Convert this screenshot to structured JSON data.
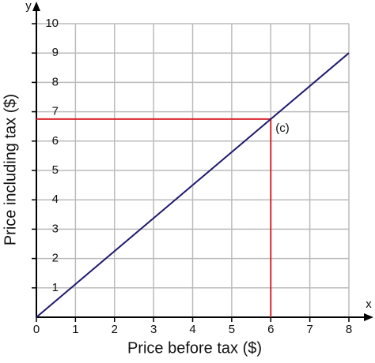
{
  "chart_data": {
    "type": "line",
    "x_label": "Price before tax ($)",
    "y_label": "Price including tax ($)",
    "x_axis_name": "x",
    "y_axis_name": "y",
    "x": [
      0,
      8
    ],
    "series": [
      {
        "color": "#1f1a6e",
        "values": [
          0,
          9
        ]
      }
    ],
    "xlim": [
      0,
      8
    ],
    "ylim": [
      0,
      10
    ],
    "xticks": [
      0,
      1,
      2,
      3,
      4,
      5,
      6,
      7,
      8
    ],
    "yticks": [
      1,
      2,
      3,
      4,
      5,
      6,
      7,
      8,
      9,
      10
    ],
    "grid": true,
    "annotation": {
      "x": 6,
      "y": 6.75,
      "label": "(c)",
      "color": "#d9262e"
    }
  }
}
